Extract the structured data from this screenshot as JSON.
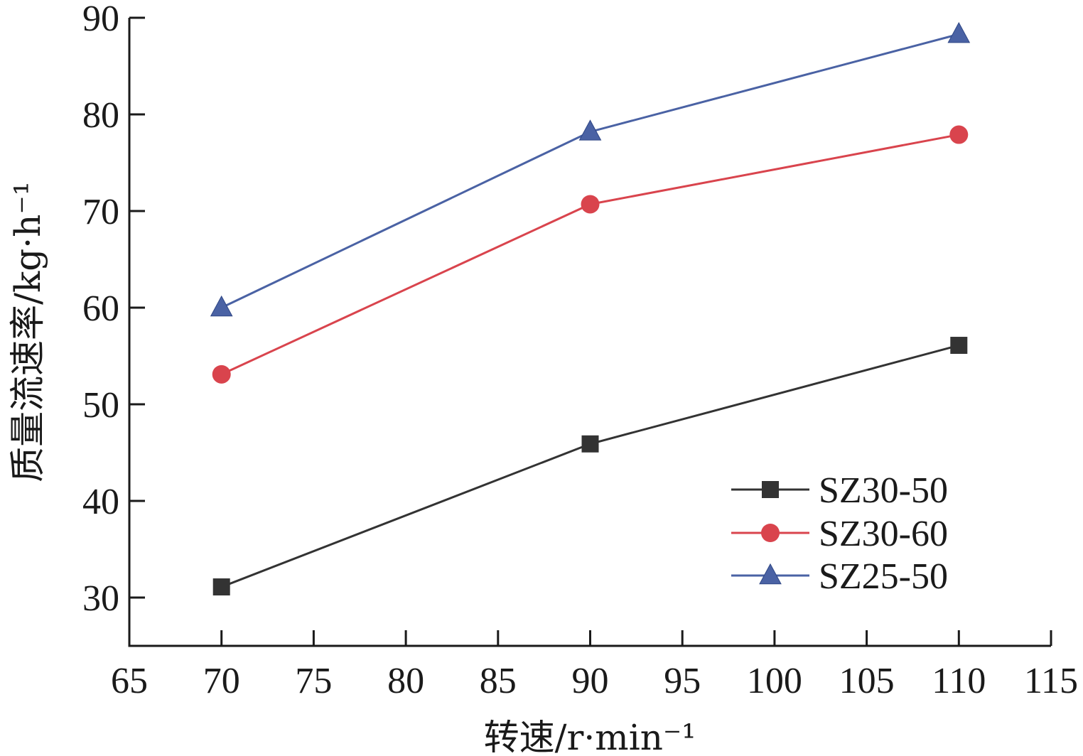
{
  "chart_data": {
    "type": "line",
    "xlabel": "转速/r·min⁻¹",
    "ylabel": "质量流速率/kg·h⁻¹",
    "xlim": [
      65,
      115
    ],
    "ylim": [
      25,
      90
    ],
    "x_ticks": [
      65,
      70,
      75,
      80,
      85,
      90,
      95,
      100,
      105,
      110,
      115
    ],
    "y_ticks": [
      30,
      40,
      50,
      60,
      70,
      80,
      90
    ],
    "x": [
      70,
      90,
      110
    ],
    "grid": false,
    "legend": "bottom-right",
    "series": [
      {
        "name": "SZ30-50",
        "values": [
          31.1,
          45.9,
          56.1
        ],
        "color": "#333333",
        "marker": "square"
      },
      {
        "name": "SZ30-60",
        "values": [
          53.1,
          70.7,
          77.9
        ],
        "color": "#d9444d",
        "marker": "circle"
      },
      {
        "name": "SZ25-50",
        "values": [
          60.0,
          78.2,
          88.3
        ],
        "color": "#4a62a4",
        "marker": "triangle"
      }
    ]
  }
}
